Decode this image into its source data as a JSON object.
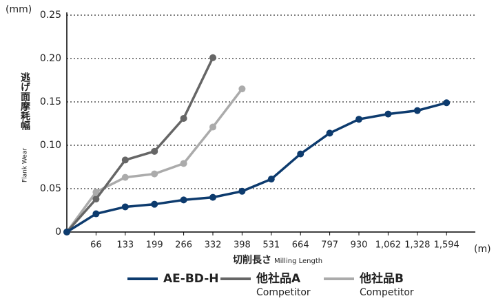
{
  "chart_data": {
    "type": "line",
    "y_unit": "(mm)",
    "x_unit": "(m)",
    "y_label": "逃げ面摩耗幅",
    "y_label_en": "Flank Wear",
    "x_label": "切削長さ",
    "x_label_en": "Milling Length",
    "categories": [
      null,
      "66",
      "133",
      "199",
      "266",
      "332",
      "398",
      "531",
      "664",
      "797",
      "930",
      "1,062",
      "1,328",
      "1,594"
    ],
    "series": [
      {
        "name": "AE-BD-H",
        "color": "#0d3b6e",
        "values": [
          0,
          0.021,
          0.029,
          0.032,
          0.037,
          0.04,
          0.047,
          0.061,
          0.09,
          0.114,
          0.13,
          0.136,
          0.14,
          0.149
        ]
      },
      {
        "name": "他社品A",
        "note": "Competitor",
        "color": "#666666",
        "values": [
          0,
          0.038,
          0.083,
          0.093,
          0.131,
          0.201,
          null,
          null,
          null,
          null,
          null,
          null,
          null,
          null
        ]
      },
      {
        "name": "他社品B",
        "note": "Competitor",
        "color": "#ababab",
        "values": [
          0,
          0.046,
          0.063,
          0.067,
          0.079,
          0.121,
          0.165,
          null,
          null,
          null,
          null,
          null,
          null,
          null
        ]
      }
    ],
    "ylim": [
      0,
      0.25
    ],
    "yticks": [
      0,
      0.05,
      {
        "value": 0.1,
        "label": "0.10"
      },
      0.15,
      {
        "value": 0.2,
        "label": "0.20"
      },
      0.25
    ],
    "grid": true
  }
}
